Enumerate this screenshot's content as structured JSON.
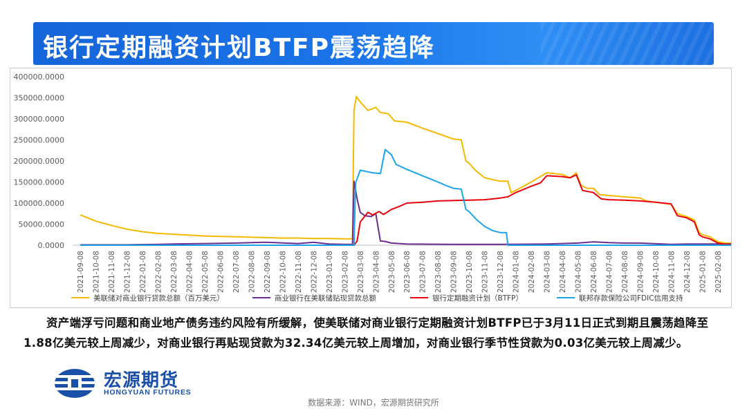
{
  "banner": {
    "title": "银行定期融资计划BTFP震荡趋降"
  },
  "paragraph": "资产端浮亏问题和商业地产债务违约风险有所缓解，使美联储对商业银行定期融资计划BTFP已于3月11日正式到期且震荡趋降至1.88亿美元较上周减少，对商业银行再贴现贷款为32.34亿美元较上周增加，对商业银行季节性贷款为0.03亿美元较上周减少。",
  "logo": {
    "name": "宏源期货",
    "name_en": "HONGYUAN FUTURES"
  },
  "source": "数据来源：WIND，宏源期货研究所",
  "chart_data": {
    "type": "line",
    "title": "",
    "ylim": [
      0,
      400000
    ],
    "yticks": [
      "0.0000",
      "50000.0000",
      "100000.0000",
      "150000.0000",
      "200000.0000",
      "250000.0000",
      "300000.0000",
      "350000.0000",
      "400000.0000"
    ],
    "categories": [
      "2021-09-08",
      "2021-10-08",
      "2021-11-08",
      "2021-12-08",
      "2022-01-08",
      "2022-02-08",
      "2022-03-08",
      "2022-04-08",
      "2022-05-08",
      "2022-06-08",
      "2022-07-08",
      "2022-08-08",
      "2022-09-08",
      "2022-10-08",
      "2022-11-08",
      "2022-12-08",
      "2023-01-08",
      "2023-02-08",
      "2023-03-08",
      "2023-04-08",
      "2023-05-08",
      "2023-06-08",
      "2023-07-08",
      "2023-08-08",
      "2023-09-08",
      "2023-10-08",
      "2023-11-08",
      "2023-12-08",
      "2024-01-08",
      "2024-02-08",
      "2024-03-08",
      "2024-04-08",
      "2024-05-08",
      "2024-06-08",
      "2024-07-08",
      "2024-08-08",
      "2024-09-08",
      "2024-10-08",
      "2024-11-08",
      "2024-12-08",
      "2025-01-08",
      "2025-02-08"
    ],
    "legend_position": "bottom",
    "grid": false,
    "series": [
      {
        "name": "美联储对商业银行贷款总额（百万美元）",
        "color": "#f5b800",
        "points": [
          [
            0,
            72000
          ],
          [
            1,
            57000
          ],
          [
            2,
            47000
          ],
          [
            3,
            38000
          ],
          [
            4,
            32000
          ],
          [
            5,
            28000
          ],
          [
            6,
            26000
          ],
          [
            7,
            24000
          ],
          [
            8,
            22000
          ],
          [
            9,
            21000
          ],
          [
            10,
            20000
          ],
          [
            11,
            19000
          ],
          [
            12,
            18000
          ],
          [
            13,
            17000
          ],
          [
            14,
            17000
          ],
          [
            15,
            16000
          ],
          [
            16,
            16000
          ],
          [
            17,
            15000
          ],
          [
            17.5,
            15000
          ],
          [
            17.6,
            320000
          ],
          [
            17.75,
            353000
          ],
          [
            18,
            340000
          ],
          [
            18.5,
            320000
          ],
          [
            19,
            327000
          ],
          [
            19.3,
            315000
          ],
          [
            19.8,
            312000
          ],
          [
            20.2,
            295000
          ],
          [
            21,
            292000
          ],
          [
            22,
            278000
          ],
          [
            23,
            265000
          ],
          [
            24,
            252000
          ],
          [
            24.5,
            250000
          ],
          [
            24.8,
            200000
          ],
          [
            25,
            195000
          ],
          [
            25.4,
            178000
          ],
          [
            26,
            160000
          ],
          [
            27,
            152000
          ],
          [
            27.5,
            152000
          ],
          [
            27.7,
            125000
          ],
          [
            28,
            130000
          ],
          [
            29,
            150000
          ],
          [
            30,
            172000
          ],
          [
            31,
            168000
          ],
          [
            31.5,
            160000
          ],
          [
            31.9,
            172000
          ],
          [
            32.2,
            142000
          ],
          [
            32.6,
            135000
          ],
          [
            33,
            135000
          ],
          [
            33.4,
            120000
          ],
          [
            34,
            118000
          ],
          [
            35,
            115000
          ],
          [
            36,
            112000
          ],
          [
            36.4,
            105000
          ],
          [
            37,
            102000
          ],
          [
            38,
            97000
          ],
          [
            38.4,
            75000
          ],
          [
            39,
            68000
          ],
          [
            39.5,
            60000
          ],
          [
            39.8,
            30000
          ],
          [
            40,
            25000
          ],
          [
            40.5,
            20000
          ],
          [
            41,
            8000
          ],
          [
            41.5,
            5000
          ],
          [
            42,
            5000
          ]
        ]
      },
      {
        "name": "商业银行在美联储贴现贷款总额",
        "color": "#6a2c91",
        "points": [
          [
            0,
            1000
          ],
          [
            3,
            1000
          ],
          [
            5,
            2000
          ],
          [
            6,
            3000
          ],
          [
            8,
            4000
          ],
          [
            10,
            5000
          ],
          [
            12,
            7000
          ],
          [
            14,
            4000
          ],
          [
            15,
            7000
          ],
          [
            16,
            3000
          ],
          [
            17,
            2000
          ],
          [
            17.5,
            2000
          ],
          [
            17.6,
            152000
          ],
          [
            17.8,
            110000
          ],
          [
            18,
            78000
          ],
          [
            18.3,
            70000
          ],
          [
            18.7,
            68000
          ],
          [
            19,
            75000
          ],
          [
            19.3,
            10000
          ],
          [
            19.6,
            9000
          ],
          [
            20,
            5000
          ],
          [
            21,
            3000
          ],
          [
            24,
            2000
          ],
          [
            27,
            2000
          ],
          [
            30,
            3000
          ],
          [
            32,
            5000
          ],
          [
            33,
            8000
          ],
          [
            34,
            6000
          ],
          [
            35,
            5000
          ],
          [
            36,
            5000
          ],
          [
            38,
            2000
          ],
          [
            39,
            3000
          ],
          [
            41,
            3000
          ],
          [
            42,
            3000
          ]
        ]
      },
      {
        "name": "银行定期融资计划（BTFP）",
        "color": "#e8000b",
        "points": [
          [
            0,
            0
          ],
          [
            17.6,
            0
          ],
          [
            17.8,
            10000
          ],
          [
            18,
            55000
          ],
          [
            18.5,
            78000
          ],
          [
            18.8,
            72000
          ],
          [
            19.2,
            80000
          ],
          [
            19.5,
            73000
          ],
          [
            20,
            85000
          ],
          [
            20.5,
            92000
          ],
          [
            21,
            100000
          ],
          [
            22,
            102000
          ],
          [
            23,
            105000
          ],
          [
            24,
            106000
          ],
          [
            25,
            107000
          ],
          [
            26,
            108000
          ],
          [
            27,
            112000
          ],
          [
            27.5,
            115000
          ],
          [
            28,
            125000
          ],
          [
            29,
            140000
          ],
          [
            29.6,
            148000
          ],
          [
            30,
            165000
          ],
          [
            31,
            163000
          ],
          [
            31.5,
            160000
          ],
          [
            31.9,
            167000
          ],
          [
            32.3,
            130000
          ],
          [
            33,
            125000
          ],
          [
            33.5,
            110000
          ],
          [
            34,
            108000
          ],
          [
            35,
            107000
          ],
          [
            36,
            105000
          ],
          [
            37,
            102000
          ],
          [
            38,
            98000
          ],
          [
            38.4,
            70000
          ],
          [
            39,
            65000
          ],
          [
            39.5,
            55000
          ],
          [
            39.8,
            25000
          ],
          [
            40,
            20000
          ],
          [
            40.5,
            15000
          ],
          [
            41,
            5000
          ],
          [
            41.5,
            2000
          ],
          [
            42,
            2000
          ]
        ]
      },
      {
        "name": "联邦存款保险公司FDIC信用支持",
        "color": "#1aa3e8",
        "points": [
          [
            0,
            0
          ],
          [
            17.6,
            0
          ],
          [
            17.7,
            148000
          ],
          [
            18,
            178000
          ],
          [
            18.4,
            175000
          ],
          [
            18.8,
            172000
          ],
          [
            19.3,
            170000
          ],
          [
            19.6,
            227000
          ],
          [
            20,
            215000
          ],
          [
            20.3,
            192000
          ],
          [
            21,
            180000
          ],
          [
            22,
            165000
          ],
          [
            23,
            150000
          ],
          [
            23.5,
            142000
          ],
          [
            24,
            135000
          ],
          [
            24.5,
            133000
          ],
          [
            24.8,
            85000
          ],
          [
            25,
            80000
          ],
          [
            25.5,
            60000
          ],
          [
            26,
            45000
          ],
          [
            26.5,
            35000
          ],
          [
            27,
            30000
          ],
          [
            27.4,
            30000
          ],
          [
            27.5,
            0
          ],
          [
            42,
            0
          ]
        ]
      }
    ]
  }
}
